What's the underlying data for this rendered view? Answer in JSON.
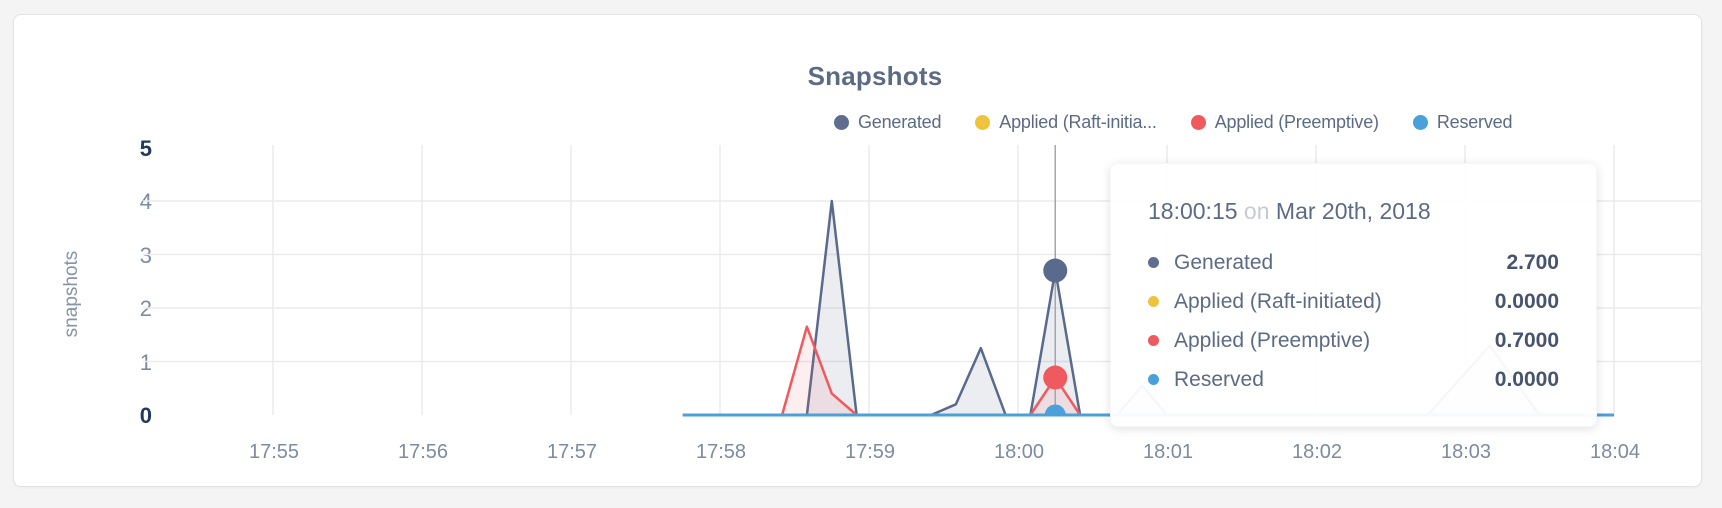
{
  "chart": {
    "title": "Snapshots",
    "y_axis_label": "snapshots",
    "legend": [
      {
        "label": "Generated",
        "color": "#5f6e8e"
      },
      {
        "label": "Applied (Raft-initia...",
        "color": "#eec43f"
      },
      {
        "label": "Applied (Preemptive)",
        "color": "#ee5a5e"
      },
      {
        "label": "Reserved",
        "color": "#4aa0d8"
      }
    ]
  },
  "chart_data": {
    "type": "area",
    "title": "Snapshots",
    "ylabel": "snapshots",
    "ylim": [
      0,
      5
    ],
    "yticks": [
      0,
      1,
      2,
      3,
      4,
      5
    ],
    "ytick_bold": [
      0,
      5
    ],
    "xticks": [
      "17:55",
      "17:56",
      "17:57",
      "17:58",
      "17:59",
      "18:00",
      "18:01",
      "18:02",
      "18:03",
      "18:04"
    ],
    "x_unit": "seconds since 17:55:00",
    "grid": true,
    "legend_position": "top-right",
    "series": [
      {
        "name": "Generated",
        "color": "#5a6a8c",
        "fill": "rgba(90,106,140,0.12)",
        "points": [
          [
            165,
            0
          ],
          [
            205,
            0
          ],
          [
            215,
            0
          ],
          [
            225,
            4
          ],
          [
            235,
            0
          ],
          [
            265,
            0
          ],
          [
            275,
            0.2
          ],
          [
            285,
            1.25
          ],
          [
            295,
            0
          ],
          [
            305,
            0
          ],
          [
            315,
            2.7
          ],
          [
            325,
            0
          ],
          [
            340,
            0
          ],
          [
            350,
            0.55
          ],
          [
            360,
            0
          ],
          [
            465,
            0
          ],
          [
            490,
            1.3
          ],
          [
            510,
            0
          ],
          [
            540,
            0
          ]
        ]
      },
      {
        "name": "Applied (Raft-initiated)",
        "color": "#eec43f",
        "fill": "none",
        "points": [
          [
            165,
            0
          ],
          [
            540,
            0
          ]
        ]
      },
      {
        "name": "Applied (Preemptive)",
        "color": "#ee5a5e",
        "fill": "rgba(238,90,94,0.10)",
        "points": [
          [
            165,
            0
          ],
          [
            205,
            0
          ],
          [
            215,
            1.65
          ],
          [
            225,
            0.4
          ],
          [
            235,
            0
          ],
          [
            305,
            0
          ],
          [
            315,
            0.7
          ],
          [
            325,
            0
          ],
          [
            540,
            0
          ]
        ]
      },
      {
        "name": "Reserved",
        "color": "#4aa0d8",
        "fill": "none",
        "points": [
          [
            165,
            0
          ],
          [
            540,
            0
          ]
        ]
      }
    ],
    "hover": {
      "time": "18:00:15",
      "t": 315,
      "dots": [
        {
          "series": 0,
          "value": 2.7
        },
        {
          "series": 2,
          "value": 0.7
        },
        {
          "series": 3,
          "value": 0
        }
      ]
    }
  },
  "tooltip": {
    "time": "18:00:15",
    "separator": "on",
    "date": "Mar 20th, 2018",
    "rows": [
      {
        "label": "Generated",
        "value": "2.700",
        "color": "#5f6e8e"
      },
      {
        "label": "Applied (Raft-initiated)",
        "value": "0.0000",
        "color": "#eec43f"
      },
      {
        "label": "Applied (Preemptive)",
        "value": "0.7000",
        "color": "#ee5a5e"
      },
      {
        "label": "Reserved",
        "value": "0.0000",
        "color": "#4aa0d8"
      }
    ]
  }
}
